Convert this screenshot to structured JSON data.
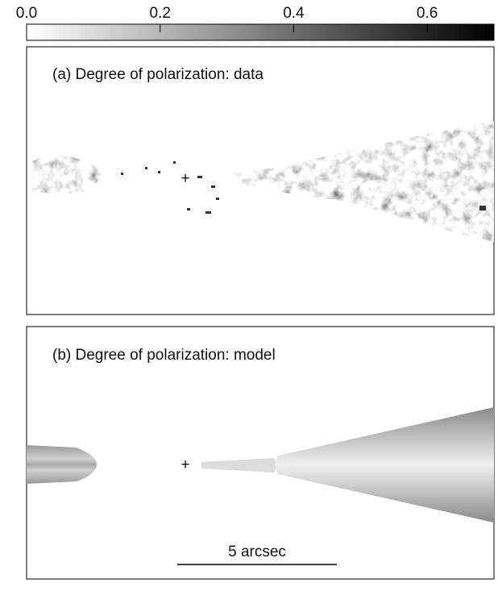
{
  "colorbar": {
    "lim": [
      0,
      0.7
    ],
    "ticks": [
      {
        "value": 0,
        "label": "0.0"
      },
      0.2,
      0.4,
      0.6
    ]
  },
  "panels": [
    {
      "label": "(a) Degree of polarization: data"
    },
    {
      "label": "(b) Degree of polarization: model"
    }
  ],
  "scale_bar": {
    "label": "5 arcsec"
  }
}
